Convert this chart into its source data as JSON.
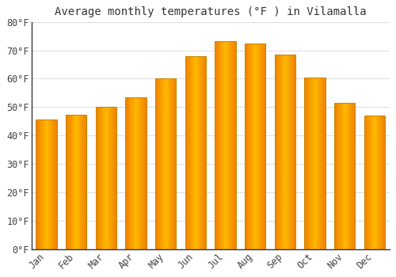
{
  "title": "Average monthly temperatures (°F ) in Vilamalla",
  "months": [
    "Jan",
    "Feb",
    "Mar",
    "Apr",
    "May",
    "Jun",
    "Jul",
    "Aug",
    "Sep",
    "Oct",
    "Nov",
    "Dec"
  ],
  "values": [
    45.5,
    47.3,
    50.0,
    53.5,
    60.0,
    68.0,
    73.2,
    72.5,
    68.5,
    60.5,
    51.5,
    47.0
  ],
  "ylim": [
    0,
    80
  ],
  "yticks": [
    0,
    10,
    20,
    30,
    40,
    50,
    60,
    70,
    80
  ],
  "ytick_labels": [
    "0°F",
    "10°F",
    "20°F",
    "30°F",
    "40°F",
    "50°F",
    "60°F",
    "70°F",
    "80°F"
  ],
  "background_color": "#ffffff",
  "grid_color": "#e0e0e0",
  "title_fontsize": 10,
  "tick_fontsize": 8.5,
  "bar_color_center": "#FFB800",
  "bar_color_edge": "#F08000",
  "bar_edge_color": "#CC8800",
  "bar_width": 0.7
}
